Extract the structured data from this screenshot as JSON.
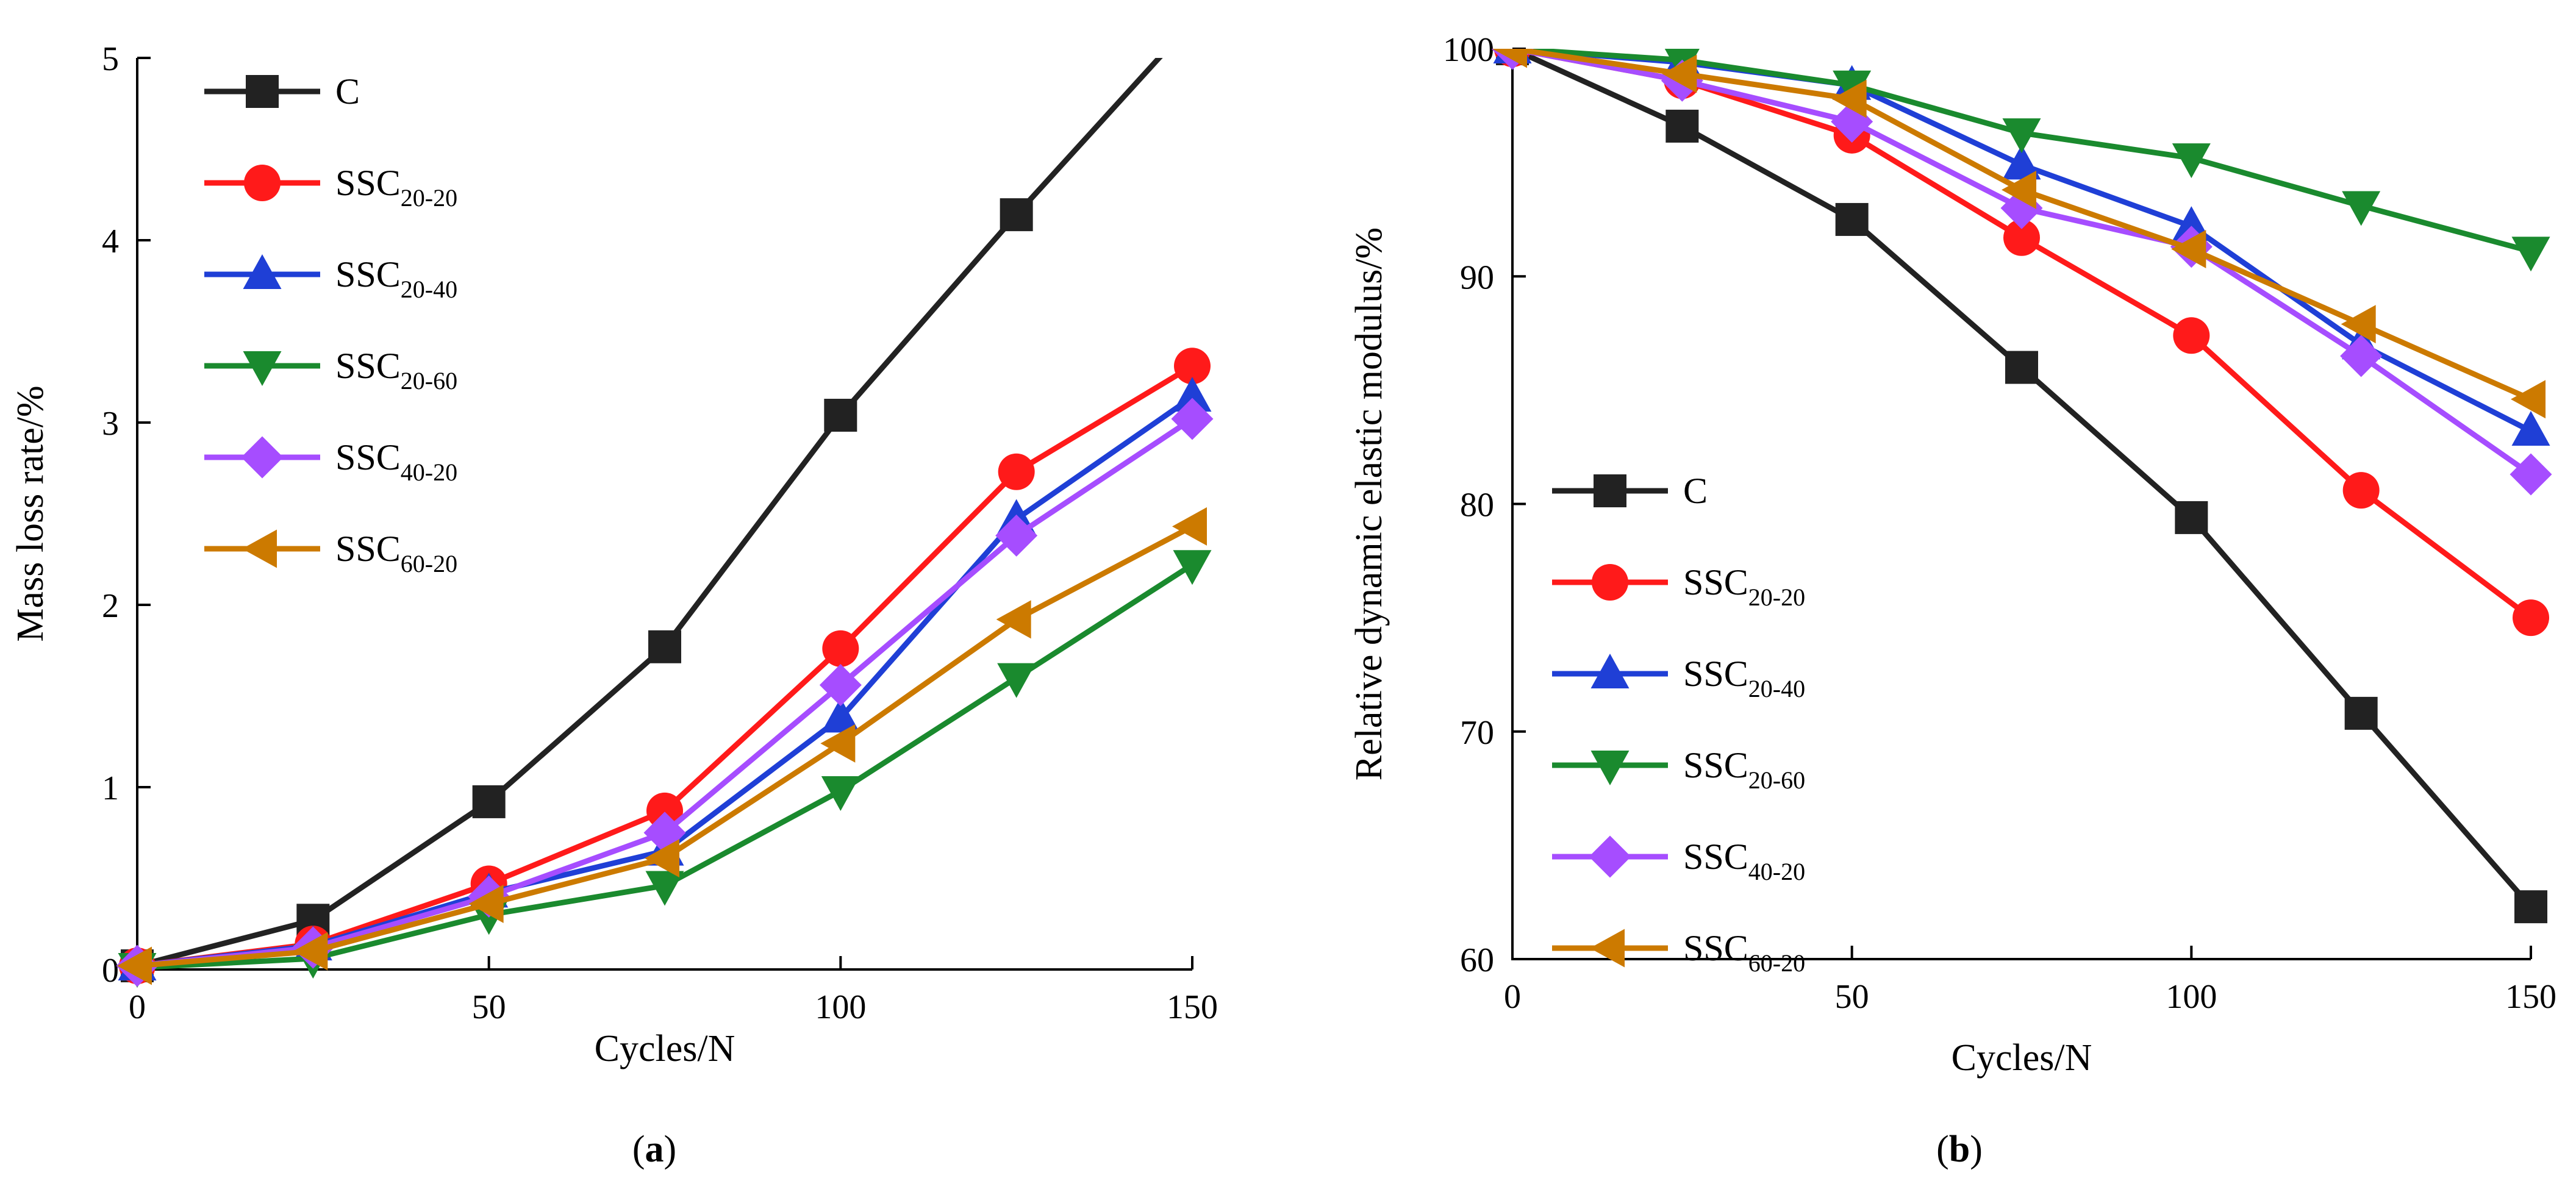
{
  "chart_data": [
    {
      "id": "a",
      "type": "line",
      "caption_letter": "a",
      "xlabel": "Cycles/N",
      "ylabel": "Mass loss rate/%",
      "xlim": [
        0,
        150
      ],
      "ylim": [
        0,
        5
      ],
      "xticks": [
        0,
        50,
        100,
        150
      ],
      "yticks": [
        0,
        1,
        2,
        3,
        4,
        5
      ],
      "grid": false,
      "legend_placement": "top-left",
      "x": [
        0,
        25,
        50,
        75,
        100,
        125,
        150
      ],
      "series": [
        {
          "name": "C",
          "sub": "",
          "color": "#222222",
          "marker": "square",
          "values": [
            0.02,
            0.27,
            0.92,
            1.77,
            3.04,
            4.14,
            5.2
          ]
        },
        {
          "name": "SSC",
          "sub": "20-20",
          "color": "#ff1a1a",
          "marker": "circle",
          "values": [
            0.02,
            0.14,
            0.47,
            0.87,
            1.76,
            2.73,
            3.31
          ]
        },
        {
          "name": "SSC",
          "sub": "20-40",
          "color": "#1f3fd6",
          "marker": "triangle-up",
          "values": [
            0.02,
            0.13,
            0.42,
            0.65,
            1.38,
            2.47,
            3.14
          ]
        },
        {
          "name": "SSC",
          "sub": "20-60",
          "color": "#1a8a2e",
          "marker": "triangle-down",
          "values": [
            0.01,
            0.06,
            0.3,
            0.46,
            0.98,
            1.6,
            2.22
          ]
        },
        {
          "name": "SSC",
          "sub": "40-20",
          "color": "#a64dff",
          "marker": "diamond",
          "values": [
            0.02,
            0.12,
            0.4,
            0.75,
            1.56,
            2.38,
            3.02
          ]
        },
        {
          "name": "SSC",
          "sub": "60-20",
          "color": "#cc7a00",
          "marker": "triangle-left",
          "values": [
            0.02,
            0.1,
            0.36,
            0.61,
            1.24,
            1.92,
            2.43
          ]
        }
      ]
    },
    {
      "id": "b",
      "type": "line",
      "caption_letter": "b",
      "xlabel": "Cycles/N",
      "ylabel": "Relative dynamic elastic modulus/%",
      "xlim": [
        0,
        150
      ],
      "ylim": [
        60,
        100
      ],
      "xticks": [
        0,
        50,
        100,
        150
      ],
      "yticks": [
        60,
        70,
        80,
        90,
        100
      ],
      "grid": false,
      "legend_placement": "bottom-left",
      "x": [
        0,
        25,
        50,
        75,
        100,
        125,
        150
      ],
      "series": [
        {
          "name": "C",
          "sub": "",
          "color": "#222222",
          "marker": "square",
          "values": [
            100,
            96.6,
            92.5,
            86.0,
            79.4,
            70.8,
            62.3
          ]
        },
        {
          "name": "SSC",
          "sub": "20-20",
          "color": "#ff1a1a",
          "marker": "circle",
          "values": [
            100,
            98.6,
            96.2,
            91.7,
            87.4,
            80.6,
            75.0
          ]
        },
        {
          "name": "SSC",
          "sub": "20-40",
          "color": "#1f3fd6",
          "marker": "triangle-up",
          "values": [
            100,
            99.4,
            98.4,
            94.9,
            92.2,
            87.0,
            83.2
          ]
        },
        {
          "name": "SSC",
          "sub": "20-60",
          "color": "#1a8a2e",
          "marker": "triangle-down",
          "values": [
            100,
            99.5,
            98.4,
            96.3,
            95.2,
            93.1,
            91.1
          ]
        },
        {
          "name": "SSC",
          "sub": "40-20",
          "color": "#a64dff",
          "marker": "diamond",
          "values": [
            100,
            98.6,
            96.8,
            93.0,
            91.3,
            86.5,
            81.3
          ]
        },
        {
          "name": "SSC",
          "sub": "60-20",
          "color": "#cc7a00",
          "marker": "triangle-left",
          "values": [
            100,
            98.9,
            97.8,
            93.8,
            91.2,
            87.9,
            84.6
          ]
        }
      ]
    }
  ]
}
